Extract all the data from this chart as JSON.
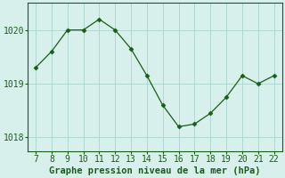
{
  "x": [
    7,
    8,
    9,
    10,
    11,
    12,
    13,
    14,
    15,
    16,
    17,
    18,
    19,
    20,
    21,
    22
  ],
  "y": [
    1019.3,
    1019.6,
    1020.0,
    1020.0,
    1020.2,
    1020.0,
    1019.65,
    1019.15,
    1018.6,
    1018.2,
    1018.25,
    1018.45,
    1018.75,
    1019.15,
    1019.0,
    1019.15
  ],
  "line_color": "#1a5c1a",
  "marker": "D",
  "marker_size": 2.5,
  "bg_color": "#d8f0ec",
  "grid_color": "#aad4cc",
  "xlabel": "Graphe pression niveau de la mer (hPa)",
  "xlabel_color": "#1a5c1a",
  "xlabel_fontsize": 7.5,
  "tick_color": "#1a5c1a",
  "tick_fontsize": 7,
  "xlim": [
    6.5,
    22.5
  ],
  "ylim": [
    1017.75,
    1020.5
  ],
  "yticks": [
    1018,
    1019,
    1020
  ],
  "xticks": [
    7,
    8,
    9,
    10,
    11,
    12,
    13,
    14,
    15,
    16,
    17,
    18,
    19,
    20,
    21,
    22
  ]
}
